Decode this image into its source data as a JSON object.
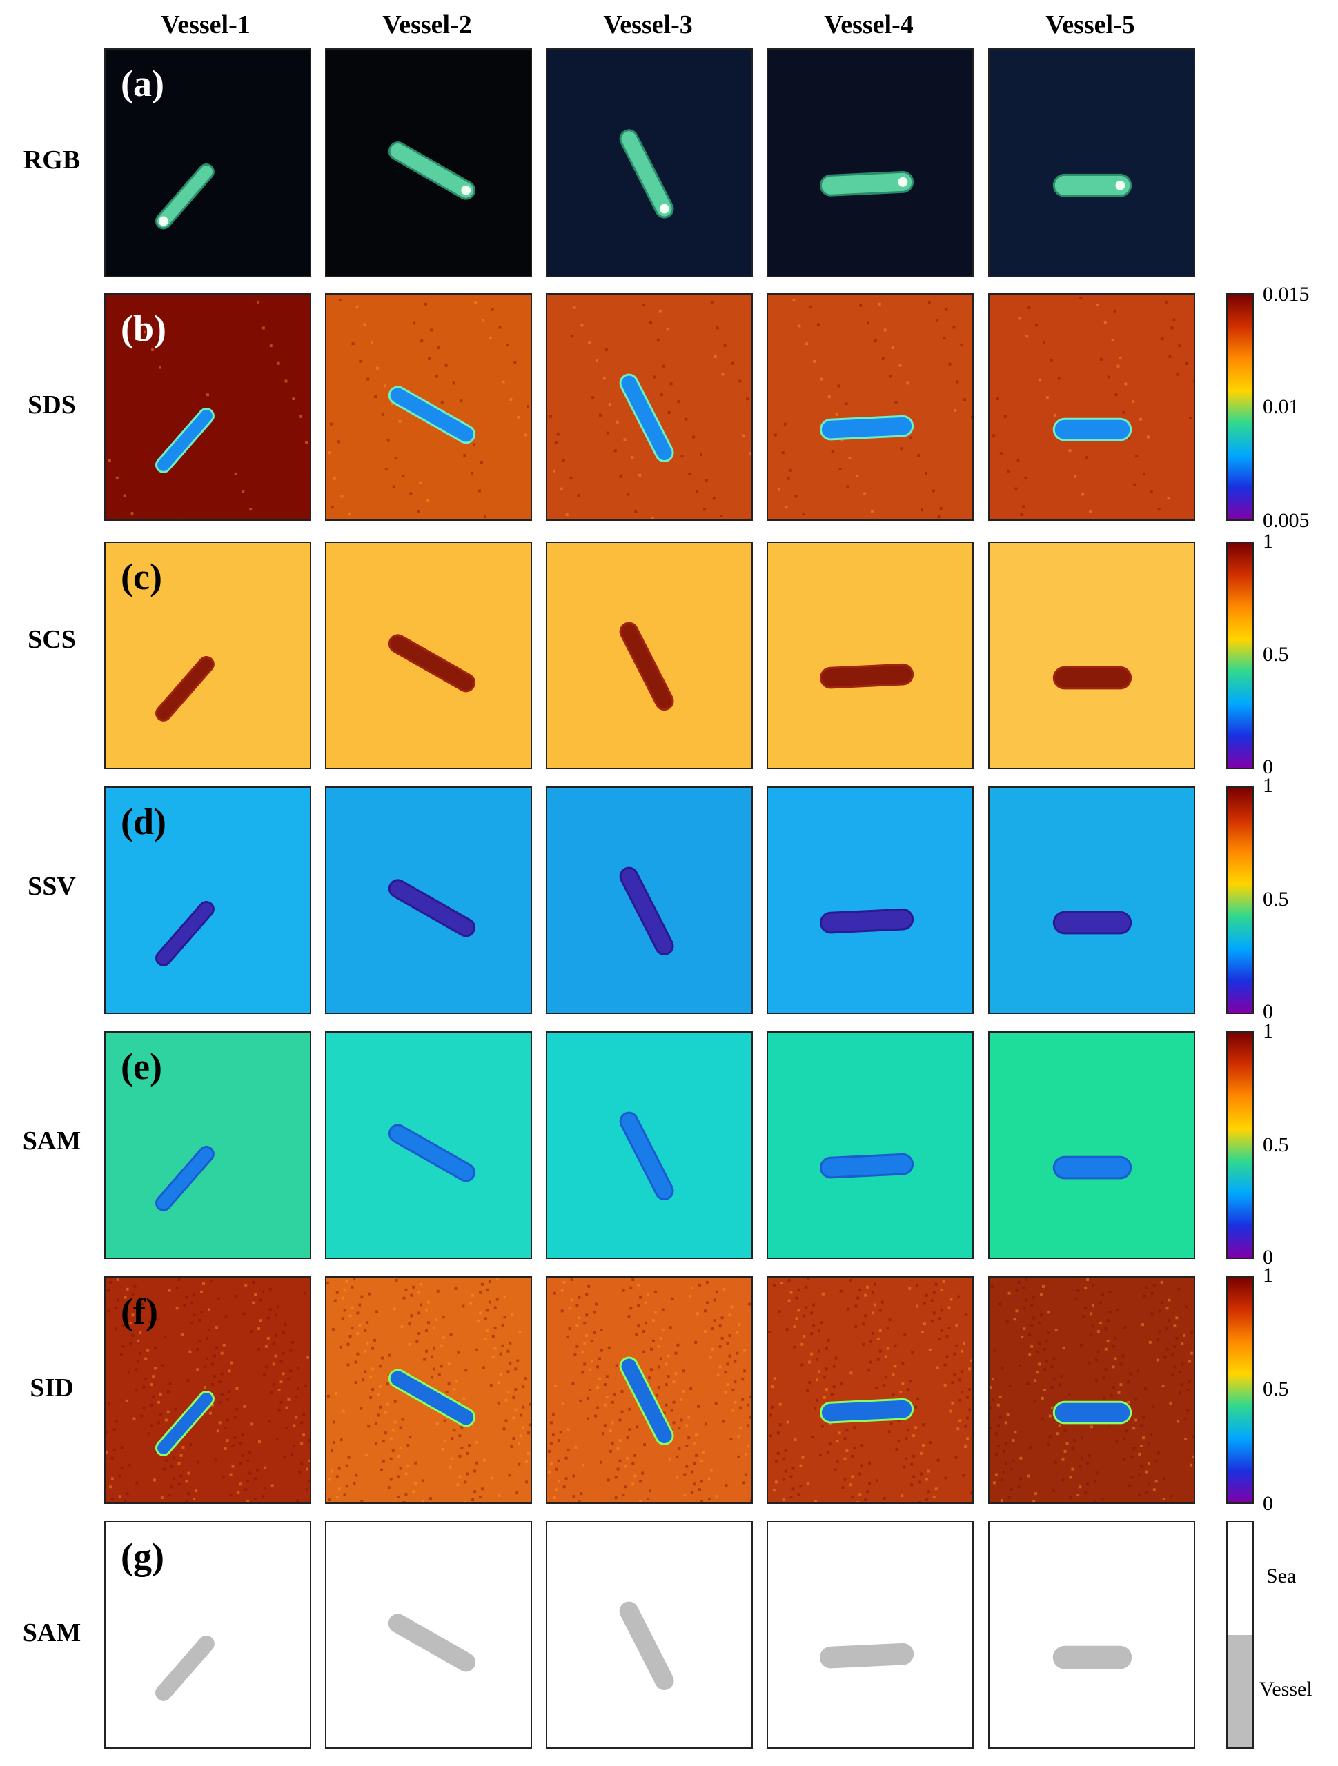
{
  "columns": [
    "Vessel-1",
    "Vessel-2",
    "Vessel-3",
    "Vessel-4",
    "Vessel-5"
  ],
  "rows": [
    {
      "letter": "(a)",
      "label": "RGB"
    },
    {
      "letter": "(b)",
      "label": "SDS"
    },
    {
      "letter": "(c)",
      "label": "SCS"
    },
    {
      "letter": "(d)",
      "label": "SSV"
    },
    {
      "letter": "(e)",
      "label": "SAM"
    },
    {
      "letter": "(f)",
      "label": "SID"
    },
    {
      "letter": "(g)",
      "label": "SAM"
    }
  ],
  "colorbars": [
    {
      "top": "0.015",
      "mid": "0.01",
      "bottom": "0.005"
    },
    {
      "top": "1",
      "mid": "0.5",
      "bottom": "0"
    },
    {
      "top": "1",
      "mid": "0.5",
      "bottom": "0"
    },
    {
      "top": "1",
      "mid": "0.5",
      "bottom": "0"
    },
    {
      "top": "1",
      "mid": "0.5",
      "bottom": "0"
    }
  ],
  "legend": {
    "sea": "Sea",
    "vessel": "Vessel"
  }
}
